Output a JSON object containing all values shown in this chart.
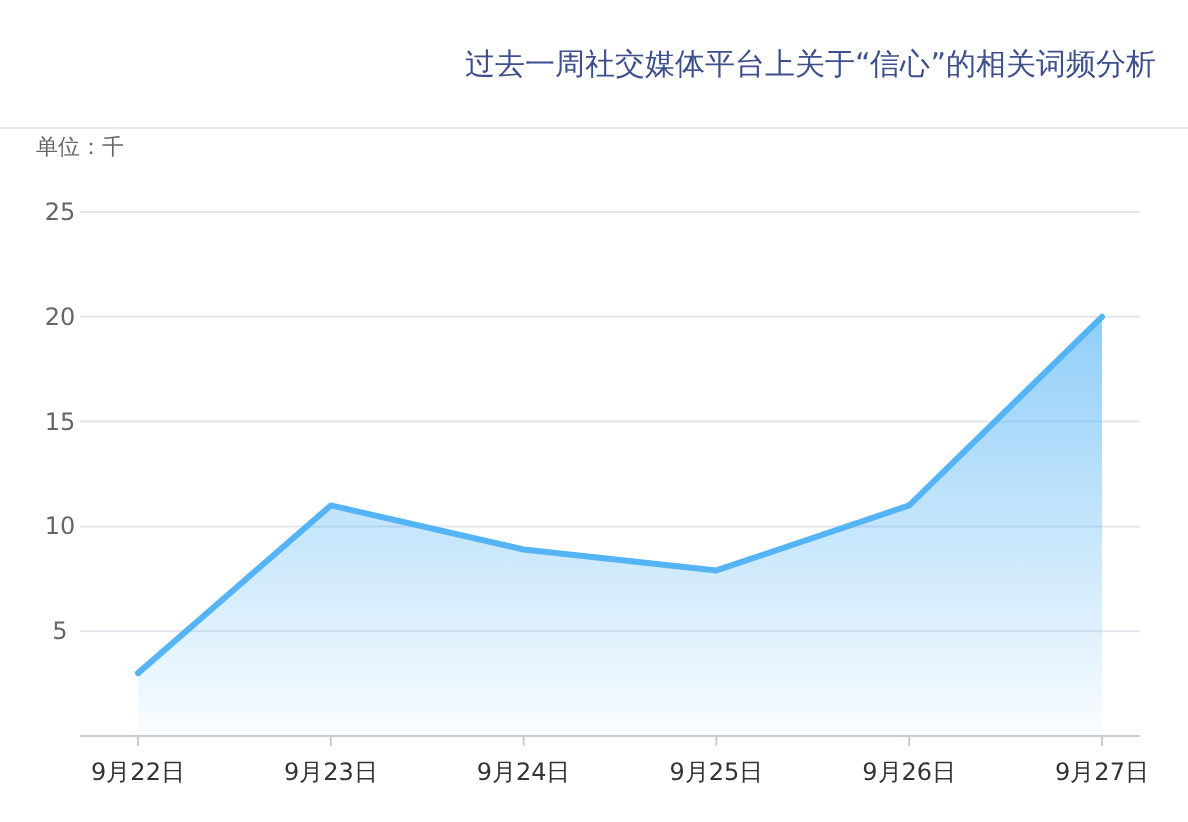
{
  "chart_data": {
    "type": "area",
    "title": "过去一周社交媒体平台上关于“信心”的相关词频分析",
    "ylabel": "单位：千",
    "categories": [
      "9月22日",
      "9月23日",
      "9月24日",
      "9月25日",
      "9月26日",
      "9月27日"
    ],
    "values": [
      3,
      11,
      8.9,
      7.9,
      11,
      20
    ],
    "color": "#55b4f5",
    "ylim": [
      0,
      25
    ],
    "yticks": [
      5,
      10,
      15,
      20,
      25
    ],
    "grid": "y",
    "marker": "none"
  }
}
